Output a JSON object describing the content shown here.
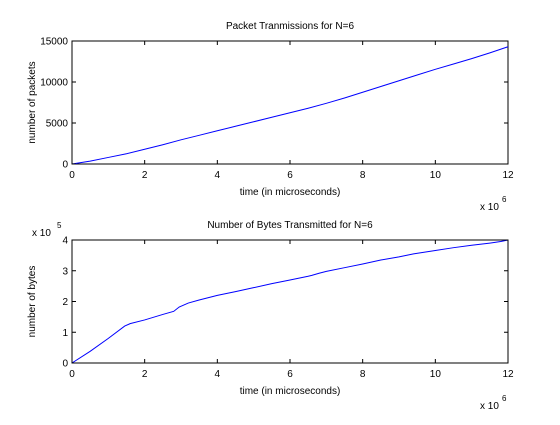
{
  "chart_data": [
    {
      "type": "line",
      "title": "Packet Tranmissions for N=6",
      "xlabel": "time (in microseconds)",
      "ylabel": "number of packets",
      "x_multiplier_base": "x 10",
      "x_multiplier_exp": "6",
      "xlim": [
        0,
        12
      ],
      "ylim": [
        0,
        15000
      ],
      "x_ticks": [
        0,
        2,
        4,
        6,
        8,
        10,
        12
      ],
      "y_ticks": [
        0,
        5000,
        10000,
        15000
      ],
      "x_tick_labels": [
        "0",
        "2",
        "4",
        "6",
        "8",
        "10",
        "12"
      ],
      "y_tick_labels": [
        "0",
        "5000",
        "10000",
        "15000"
      ],
      "grid": false,
      "series": [
        {
          "color": "#0000ff",
          "x": [
            0,
            0.5,
            1,
            1.5,
            2,
            2.5,
            3,
            3.5,
            4,
            4.5,
            5,
            5.5,
            6,
            6.5,
            7,
            7.5,
            8,
            8.5,
            9,
            9.5,
            10,
            10.5,
            11,
            11.5,
            12
          ],
          "y": [
            0,
            350,
            800,
            1250,
            1800,
            2350,
            2950,
            3500,
            4050,
            4600,
            5150,
            5700,
            6250,
            6800,
            7400,
            8050,
            8750,
            9450,
            10150,
            10850,
            11550,
            12200,
            12850,
            13550,
            14300
          ]
        }
      ]
    },
    {
      "type": "line",
      "title": "Number of Bytes Transmitted for N=6",
      "xlabel": "time (in microseconds)",
      "ylabel": "number of bytes",
      "x_multiplier_base": "x 10",
      "x_multiplier_exp": "6",
      "y_multiplier_base": "x 10",
      "y_multiplier_exp": "5",
      "xlim": [
        0,
        12
      ],
      "ylim": [
        0,
        4
      ],
      "x_ticks": [
        0,
        2,
        4,
        6,
        8,
        10,
        12
      ],
      "y_ticks": [
        0,
        1,
        2,
        3,
        4
      ],
      "x_tick_labels": [
        "0",
        "2",
        "4",
        "6",
        "8",
        "10",
        "12"
      ],
      "y_tick_labels": [
        "0",
        "1",
        "2",
        "3",
        "4"
      ],
      "grid": false,
      "series": [
        {
          "color": "#0000ff",
          "x": [
            0,
            0.5,
            1,
            1.45,
            1.6,
            2,
            2.5,
            2.8,
            2.95,
            3.2,
            3.5,
            4,
            4.5,
            5,
            5.5,
            6,
            6.5,
            6.6,
            6.8,
            7,
            7.5,
            8,
            8.5,
            9,
            9.2,
            9.4,
            10,
            10.5,
            11,
            11.5,
            11.8,
            12
          ],
          "y": [
            0,
            0.38,
            0.8,
            1.2,
            1.28,
            1.4,
            1.58,
            1.68,
            1.82,
            1.95,
            2.05,
            2.2,
            2.32,
            2.45,
            2.58,
            2.7,
            2.82,
            2.85,
            2.92,
            2.98,
            3.1,
            3.22,
            3.35,
            3.45,
            3.5,
            3.55,
            3.66,
            3.75,
            3.83,
            3.9,
            3.95,
            4.0
          ]
        }
      ]
    }
  ]
}
